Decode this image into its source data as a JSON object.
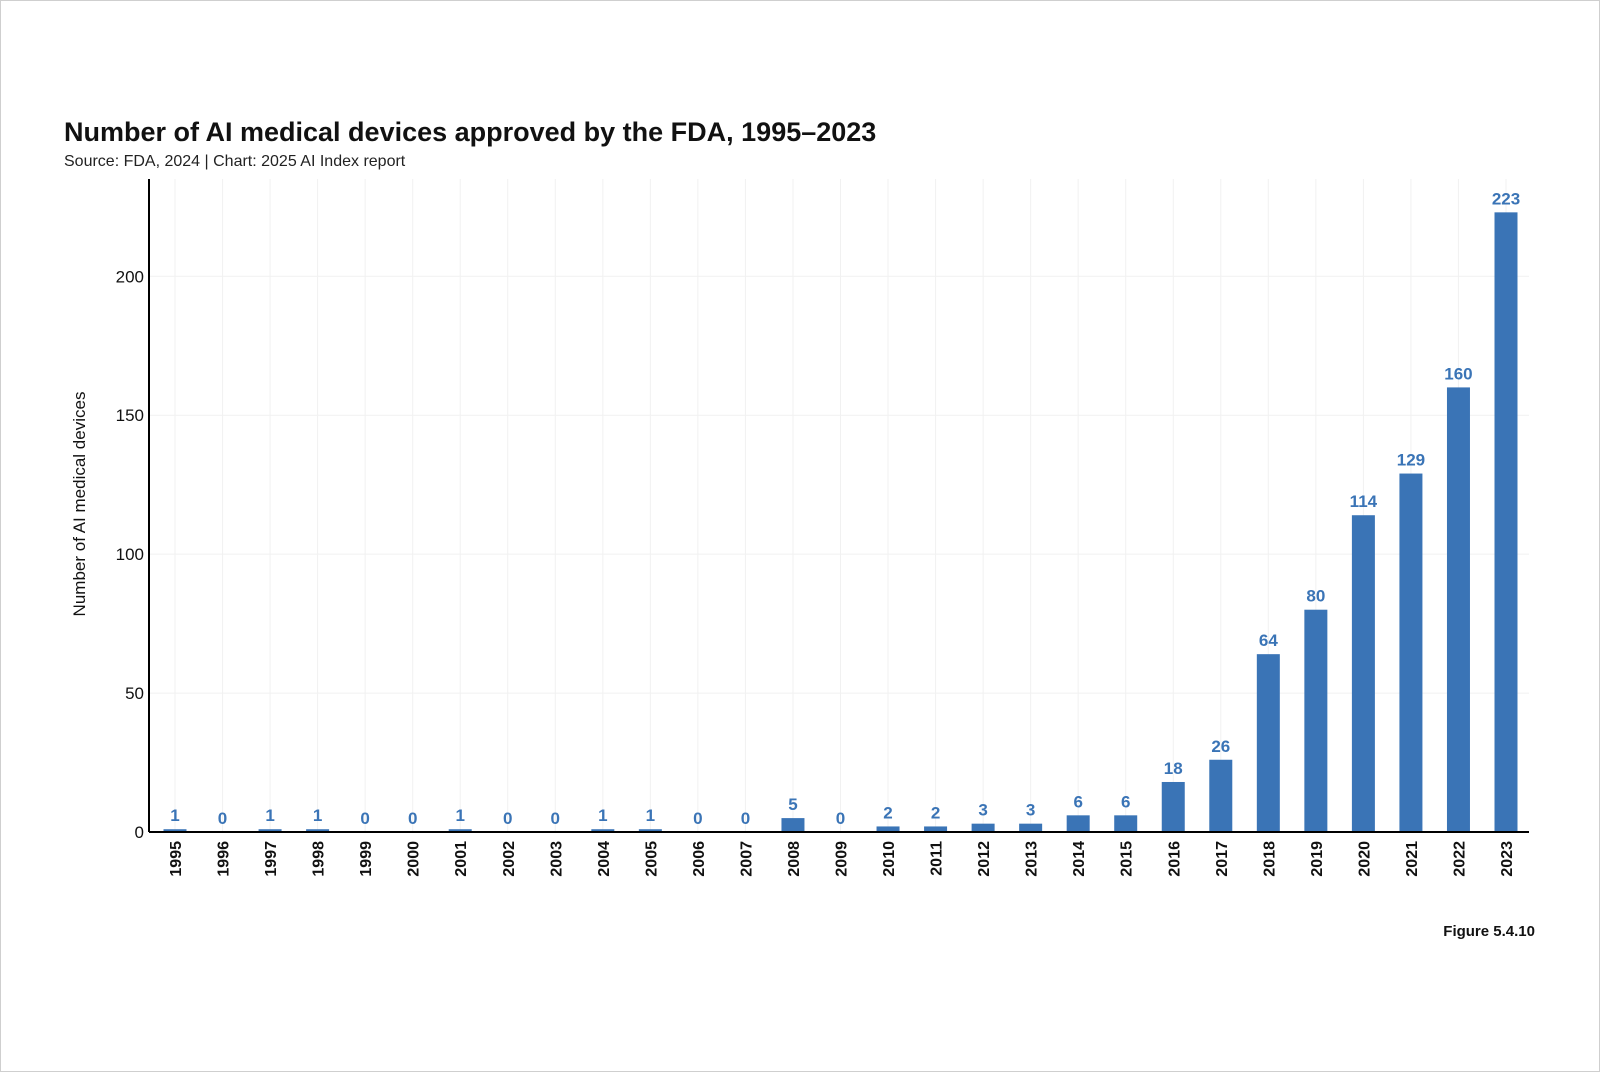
{
  "chart_data": {
    "type": "bar",
    "title": "Number of AI medical devices approved by the FDA, 1995–2023",
    "subtitle": "Source: FDA, 2024 | Chart: 2025 AI Index report",
    "xlabel": "",
    "ylabel": "Number of AI medical devices",
    "ylim": [
      0,
      235
    ],
    "yticks": [
      0,
      50,
      100,
      150,
      200
    ],
    "grid": true,
    "legend": "none",
    "categories": [
      "1995",
      "1996",
      "1997",
      "1998",
      "1999",
      "2000",
      "2001",
      "2002",
      "2003",
      "2004",
      "2005",
      "2006",
      "2007",
      "2008",
      "2009",
      "2010",
      "2011",
      "2012",
      "2013",
      "2014",
      "2015",
      "2016",
      "2017",
      "2018",
      "2019",
      "2020",
      "2021",
      "2022",
      "2023"
    ],
    "values": [
      1,
      0,
      1,
      1,
      0,
      0,
      1,
      0,
      0,
      1,
      1,
      0,
      0,
      5,
      0,
      2,
      2,
      3,
      3,
      6,
      6,
      18,
      26,
      64,
      80,
      114,
      129,
      160,
      223
    ],
    "bar_color": "#3a74b6",
    "label_color": "#3a74b6"
  },
  "figure_label": "Figure 5.4.10"
}
